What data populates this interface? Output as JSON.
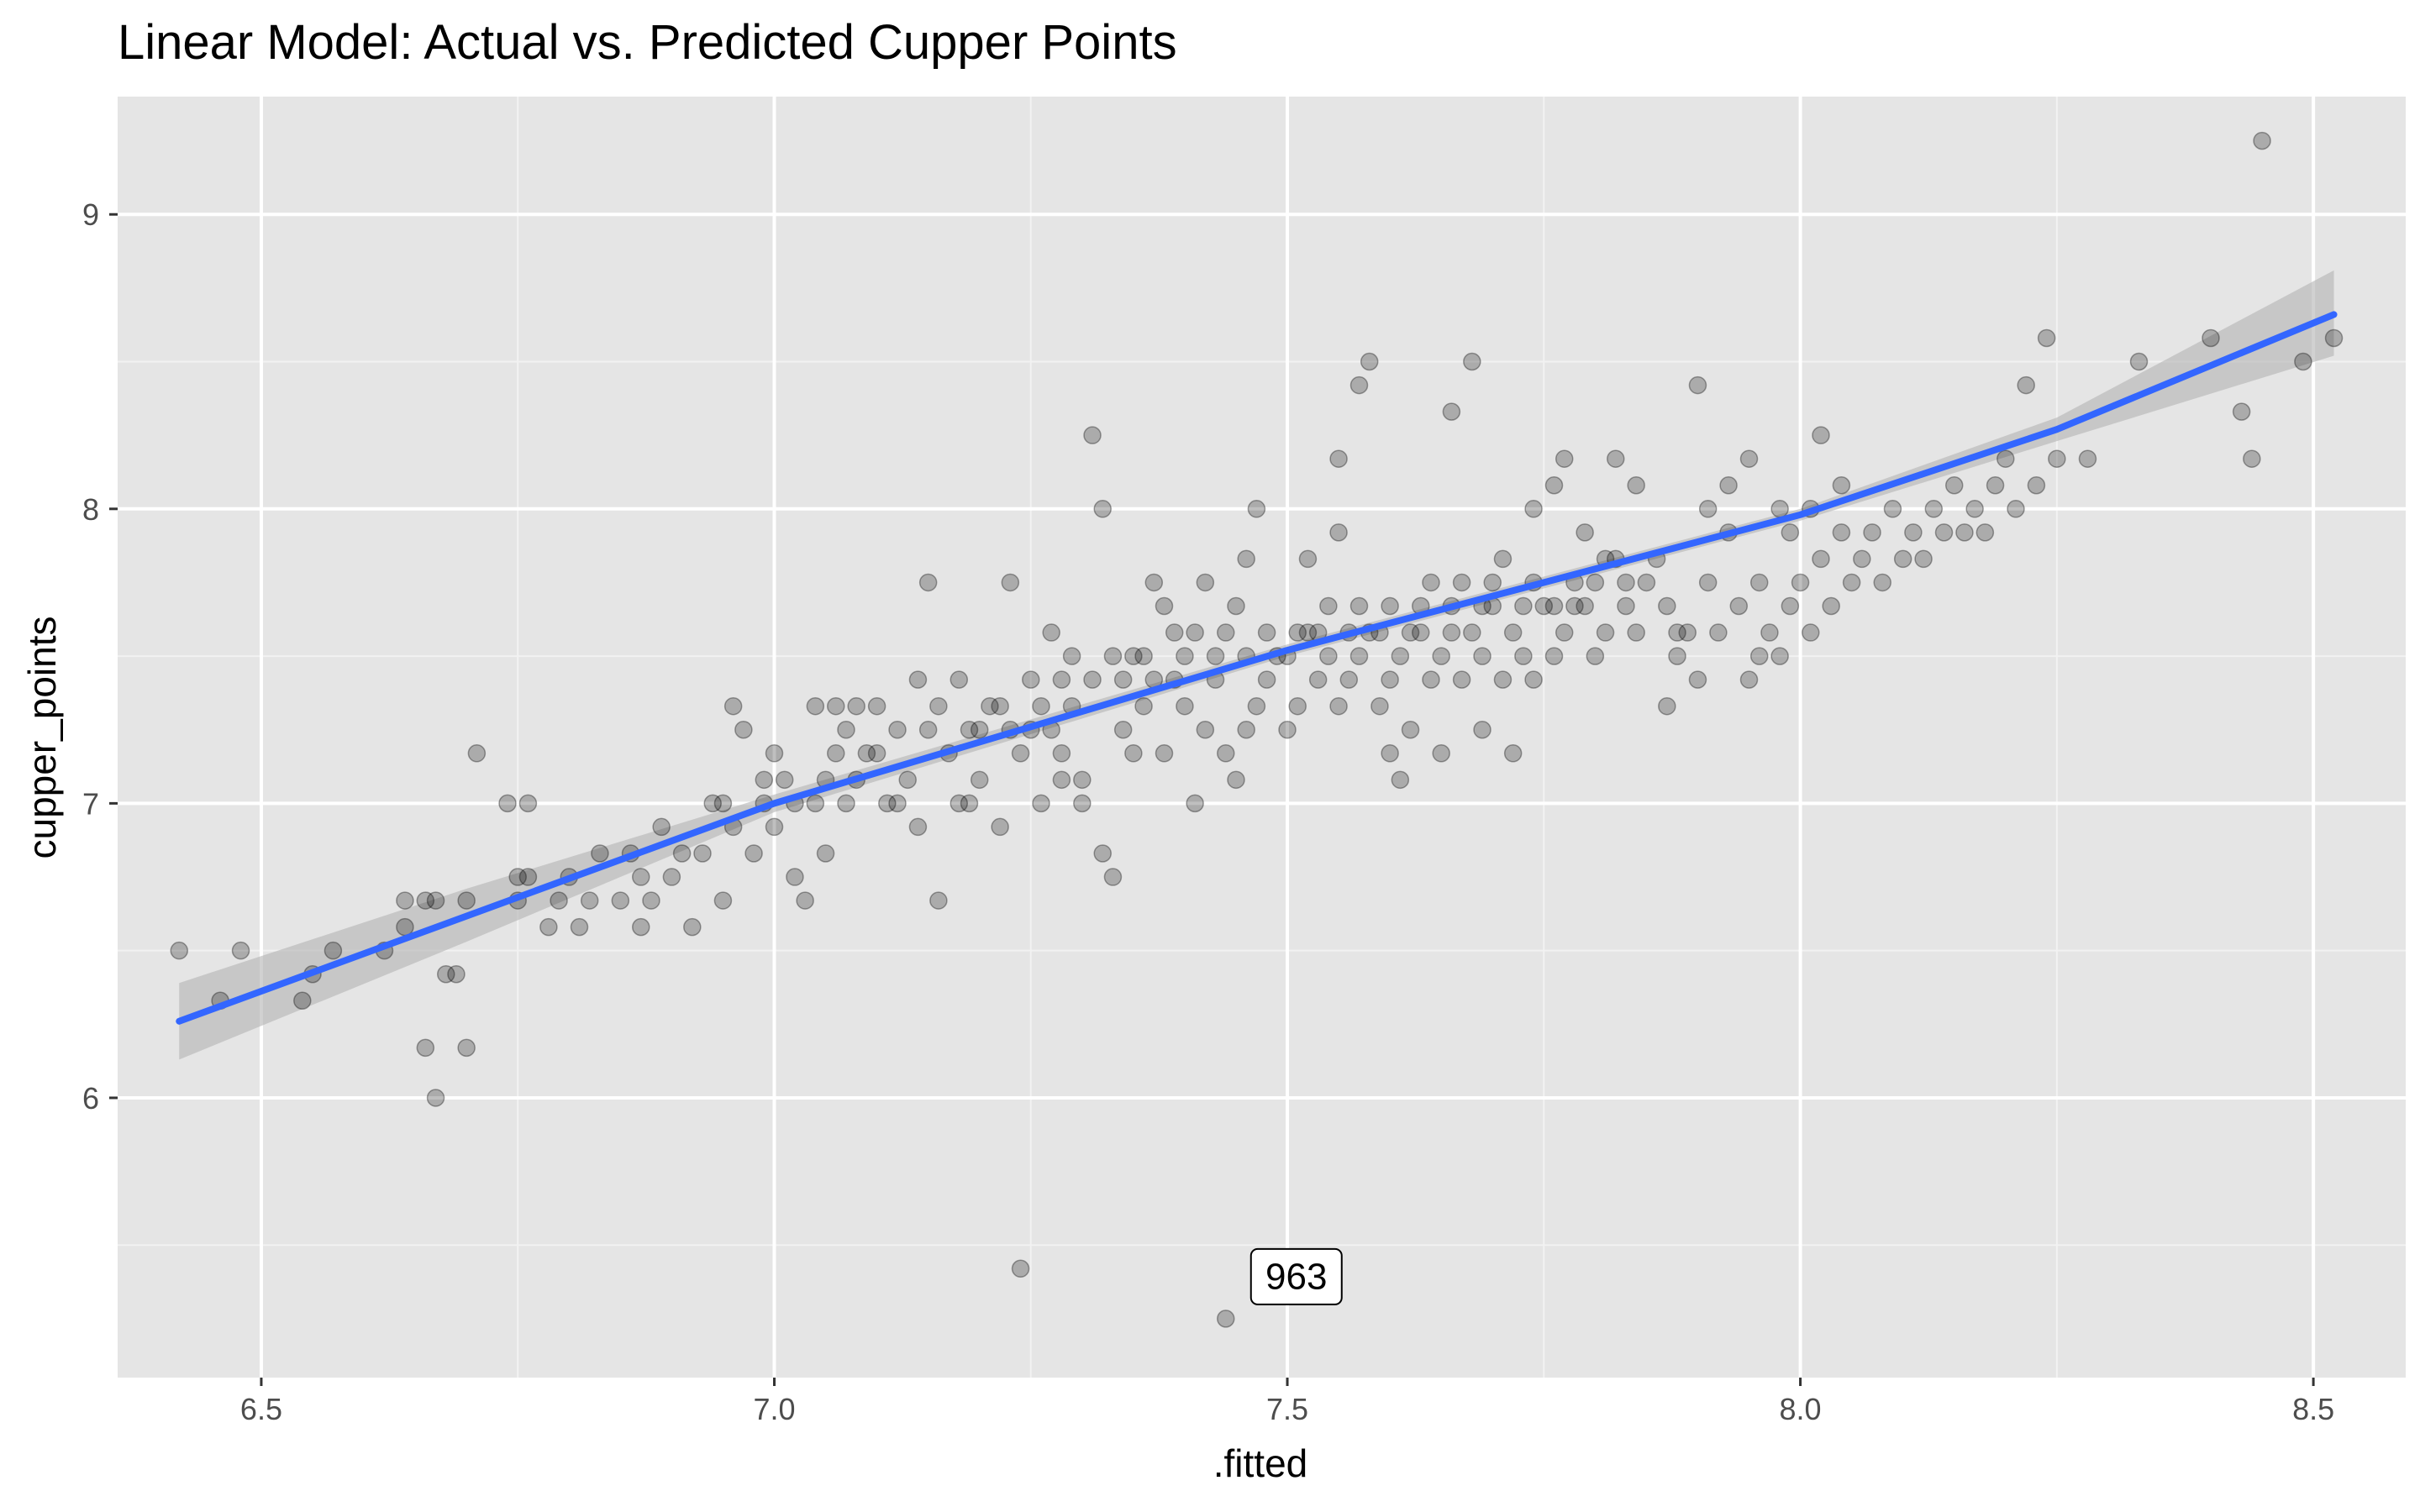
{
  "chart_data": {
    "type": "scatter",
    "title": "Linear Model: Actual vs. Predicted Cupper Points",
    "xlabel": ".fitted",
    "ylabel": "cupper_points",
    "xlim": [
      6.36,
      8.59
    ],
    "ylim": [
      5.05,
      9.4
    ],
    "x_ticks": [
      6.5,
      7.0,
      7.5,
      8.0,
      8.5
    ],
    "x_tick_labels": [
      "6.5",
      "7.0",
      "7.5",
      "8.0",
      "8.5"
    ],
    "y_ticks": [
      6,
      7,
      8,
      9
    ],
    "y_tick_labels": [
      "6",
      "7",
      "8",
      "9"
    ],
    "grid": true,
    "background": "#e5e5e5",
    "point_color": "#000000",
    "point_opacity": 0.25,
    "fit_line_color": "#3366ff",
    "ribbon_color": "#b3b3b3",
    "annotation": {
      "label": "963",
      "x": 7.44,
      "y": 5.25
    },
    "series": [
      {
        "type": "scatter",
        "points": [
          [
            6.42,
            6.5
          ],
          [
            6.46,
            6.33
          ],
          [
            6.48,
            6.5
          ],
          [
            6.54,
            6.33
          ],
          [
            6.55,
            6.42
          ],
          [
            6.57,
            6.5
          ],
          [
            6.62,
            6.5
          ],
          [
            6.64,
            6.58
          ],
          [
            6.64,
            6.67
          ],
          [
            6.66,
            6.67
          ],
          [
            6.66,
            6.17
          ],
          [
            6.67,
            6.0
          ],
          [
            6.67,
            6.67
          ],
          [
            6.68,
            6.42
          ],
          [
            6.69,
            6.42
          ],
          [
            6.7,
            6.17
          ],
          [
            6.7,
            6.67
          ],
          [
            6.71,
            7.17
          ],
          [
            6.74,
            7.0
          ],
          [
            6.75,
            6.67
          ],
          [
            6.75,
            6.75
          ],
          [
            6.76,
            7.0
          ],
          [
            6.76,
            6.75
          ],
          [
            6.78,
            6.58
          ],
          [
            6.79,
            6.67
          ],
          [
            6.8,
            6.75
          ],
          [
            6.81,
            6.58
          ],
          [
            6.82,
            6.67
          ],
          [
            6.83,
            6.83
          ],
          [
            6.85,
            6.67
          ],
          [
            6.86,
            6.83
          ],
          [
            6.87,
            6.58
          ],
          [
            6.87,
            6.75
          ],
          [
            6.88,
            6.67
          ],
          [
            6.89,
            6.92
          ],
          [
            6.9,
            6.75
          ],
          [
            6.91,
            6.83
          ],
          [
            6.92,
            6.58
          ],
          [
            6.93,
            6.83
          ],
          [
            6.94,
            7.0
          ],
          [
            6.95,
            6.67
          ],
          [
            6.96,
            7.33
          ],
          [
            6.96,
            6.92
          ],
          [
            6.97,
            7.25
          ],
          [
            6.98,
            6.83
          ],
          [
            6.99,
            7.0
          ],
          [
            7.0,
            6.92
          ],
          [
            7.01,
            7.08
          ],
          [
            7.02,
            6.75
          ],
          [
            7.03,
            6.67
          ],
          [
            7.04,
            7.0
          ],
          [
            7.05,
            6.83
          ],
          [
            7.06,
            7.17
          ],
          [
            7.06,
            7.33
          ],
          [
            7.07,
            7.0
          ],
          [
            7.08,
            7.08
          ],
          [
            7.09,
            7.17
          ],
          [
            7.1,
            7.33
          ],
          [
            7.12,
            7.0
          ],
          [
            7.13,
            7.08
          ],
          [
            7.14,
            6.92
          ],
          [
            7.15,
            7.25
          ],
          [
            7.16,
            6.67
          ],
          [
            7.17,
            7.17
          ],
          [
            7.18,
            7.0
          ],
          [
            7.19,
            7.25
          ],
          [
            7.2,
            7.08
          ],
          [
            7.21,
            7.33
          ],
          [
            7.22,
            6.92
          ],
          [
            7.23,
            7.25
          ],
          [
            7.24,
            7.17
          ],
          [
            7.25,
            7.42
          ],
          [
            7.26,
            7.0
          ],
          [
            7.27,
            7.25
          ],
          [
            7.28,
            7.17
          ],
          [
            7.29,
            7.33
          ],
          [
            7.3,
            7.08
          ],
          [
            7.31,
            7.42
          ],
          [
            7.32,
            6.83
          ],
          [
            7.33,
            6.75
          ],
          [
            7.34,
            7.25
          ],
          [
            7.35,
            7.17
          ],
          [
            7.36,
            7.33
          ],
          [
            7.37,
            7.75
          ],
          [
            7.38,
            7.17
          ],
          [
            7.39,
            7.42
          ],
          [
            7.4,
            7.33
          ],
          [
            7.41,
            7.0
          ],
          [
            7.42,
            7.25
          ],
          [
            7.43,
            7.42
          ],
          [
            7.44,
            7.17
          ],
          [
            7.45,
            7.08
          ],
          [
            7.46,
            7.25
          ],
          [
            7.47,
            7.33
          ],
          [
            7.48,
            7.42
          ],
          [
            7.49,
            7.5
          ],
          [
            7.5,
            7.25
          ],
          [
            7.51,
            7.33
          ],
          [
            7.52,
            7.58
          ],
          [
            7.53,
            7.42
          ],
          [
            7.54,
            7.5
          ],
          [
            7.55,
            7.33
          ],
          [
            7.56,
            7.42
          ],
          [
            7.57,
            7.5
          ],
          [
            7.58,
            7.58
          ],
          [
            7.59,
            7.33
          ],
          [
            7.6,
            7.42
          ],
          [
            7.61,
            7.5
          ],
          [
            7.62,
            7.25
          ],
          [
            7.63,
            7.58
          ],
          [
            7.64,
            7.42
          ],
          [
            7.65,
            7.5
          ],
          [
            7.66,
            7.67
          ],
          [
            7.67,
            7.42
          ],
          [
            7.68,
            7.58
          ],
          [
            7.69,
            7.5
          ],
          [
            7.7,
            7.67
          ],
          [
            7.71,
            7.42
          ],
          [
            7.72,
            7.58
          ],
          [
            7.73,
            7.5
          ],
          [
            7.74,
            7.42
          ],
          [
            7.75,
            7.67
          ],
          [
            7.76,
            7.5
          ],
          [
            7.77,
            7.58
          ],
          [
            7.78,
            7.75
          ],
          [
            7.79,
            7.67
          ],
          [
            7.8,
            7.5
          ],
          [
            7.81,
            7.58
          ],
          [
            7.82,
            7.83
          ],
          [
            7.83,
            7.67
          ],
          [
            7.84,
            7.58
          ],
          [
            7.85,
            7.75
          ],
          [
            7.86,
            7.83
          ],
          [
            7.87,
            7.67
          ],
          [
            7.88,
            7.5
          ],
          [
            7.89,
            7.58
          ],
          [
            7.9,
            7.42
          ],
          [
            7.91,
            7.75
          ],
          [
            7.92,
            7.58
          ],
          [
            7.93,
            7.92
          ],
          [
            7.94,
            7.67
          ],
          [
            7.95,
            7.42
          ],
          [
            7.96,
            7.75
          ],
          [
            7.97,
            7.58
          ],
          [
            7.98,
            7.5
          ],
          [
            7.99,
            7.67
          ],
          [
            8.0,
            7.75
          ],
          [
            8.01,
            7.58
          ],
          [
            8.02,
            7.83
          ],
          [
            8.03,
            7.67
          ],
          [
            8.04,
            7.92
          ],
          [
            8.05,
            7.75
          ],
          [
            8.06,
            7.83
          ],
          [
            8.07,
            7.92
          ],
          [
            8.08,
            7.75
          ],
          [
            8.09,
            8.0
          ],
          [
            8.1,
            7.83
          ],
          [
            8.11,
            7.92
          ],
          [
            8.12,
            7.83
          ],
          [
            8.13,
            8.0
          ],
          [
            8.14,
            7.92
          ],
          [
            8.15,
            8.08
          ],
          [
            8.16,
            7.92
          ],
          [
            8.17,
            8.0
          ],
          [
            8.18,
            7.92
          ],
          [
            8.19,
            8.08
          ],
          [
            8.2,
            8.17
          ],
          [
            8.21,
            8.0
          ],
          [
            8.22,
            8.42
          ],
          [
            8.23,
            8.08
          ],
          [
            8.24,
            8.58
          ],
          [
            8.25,
            8.17
          ],
          [
            8.28,
            8.17
          ],
          [
            8.33,
            8.5
          ],
          [
            8.4,
            8.58
          ],
          [
            8.43,
            8.33
          ],
          [
            8.44,
            8.17
          ],
          [
            8.45,
            9.25
          ],
          [
            8.49,
            8.5
          ],
          [
            8.52,
            8.58
          ],
          [
            7.04,
            7.33
          ],
          [
            7.08,
            7.33
          ],
          [
            7.11,
            7.0
          ],
          [
            7.14,
            7.42
          ],
          [
            7.15,
            7.75
          ],
          [
            7.19,
            7.0
          ],
          [
            7.23,
            7.75
          ],
          [
            7.27,
            7.58
          ],
          [
            7.31,
            8.25
          ],
          [
            7.32,
            8.0
          ],
          [
            7.28,
            7.08
          ],
          [
            7.3,
            7.0
          ],
          [
            7.35,
            7.5
          ],
          [
            7.38,
            7.67
          ],
          [
            7.39,
            7.58
          ],
          [
            7.42,
            7.75
          ],
          [
            7.45,
            7.67
          ],
          [
            7.46,
            7.83
          ],
          [
            7.47,
            8.0
          ],
          [
            7.52,
            7.83
          ],
          [
            7.55,
            7.92
          ],
          [
            7.57,
            8.42
          ],
          [
            7.58,
            8.5
          ],
          [
            7.55,
            8.17
          ],
          [
            7.6,
            7.17
          ],
          [
            7.61,
            7.08
          ],
          [
            7.65,
            7.17
          ],
          [
            7.66,
            8.33
          ],
          [
            7.68,
            8.5
          ],
          [
            7.69,
            7.25
          ],
          [
            7.72,
            7.17
          ],
          [
            7.74,
            8.0
          ],
          [
            7.76,
            8.08
          ],
          [
            7.77,
            8.17
          ],
          [
            7.79,
            7.92
          ],
          [
            7.82,
            8.17
          ],
          [
            7.84,
            8.08
          ],
          [
            7.87,
            7.33
          ],
          [
            7.88,
            7.58
          ],
          [
            7.9,
            8.42
          ],
          [
            7.91,
            8.0
          ],
          [
            7.93,
            8.08
          ],
          [
            7.95,
            8.17
          ],
          [
            7.96,
            7.5
          ],
          [
            7.98,
            8.0
          ],
          [
            7.99,
            7.92
          ],
          [
            8.01,
            8.0
          ],
          [
            8.02,
            8.25
          ],
          [
            8.04,
            8.08
          ],
          [
            7.24,
            5.42
          ],
          [
            7.44,
            5.25
          ],
          [
            6.95,
            7.0
          ],
          [
            6.99,
            7.08
          ],
          [
            7.0,
            7.17
          ],
          [
            7.02,
            7.0
          ],
          [
            7.05,
            7.08
          ],
          [
            7.07,
            7.25
          ],
          [
            7.1,
            7.17
          ],
          [
            7.12,
            7.25
          ],
          [
            7.16,
            7.33
          ],
          [
            7.18,
            7.42
          ],
          [
            7.2,
            7.25
          ],
          [
            7.22,
            7.33
          ],
          [
            7.25,
            7.25
          ],
          [
            7.26,
            7.33
          ],
          [
            7.28,
            7.42
          ],
          [
            7.29,
            7.5
          ],
          [
            7.33,
            7.5
          ],
          [
            7.34,
            7.42
          ],
          [
            7.36,
            7.5
          ],
          [
            7.37,
            7.42
          ],
          [
            7.4,
            7.5
          ],
          [
            7.41,
            7.58
          ],
          [
            7.43,
            7.5
          ],
          [
            7.44,
            7.58
          ],
          [
            7.46,
            7.5
          ],
          [
            7.48,
            7.58
          ],
          [
            7.5,
            7.5
          ],
          [
            7.51,
            7.58
          ],
          [
            7.53,
            7.58
          ],
          [
            7.54,
            7.67
          ],
          [
            7.56,
            7.58
          ],
          [
            7.57,
            7.67
          ],
          [
            7.59,
            7.58
          ],
          [
            7.6,
            7.67
          ],
          [
            7.62,
            7.58
          ],
          [
            7.63,
            7.67
          ],
          [
            7.64,
            7.75
          ],
          [
            7.66,
            7.58
          ],
          [
            7.67,
            7.75
          ],
          [
            7.69,
            7.67
          ],
          [
            7.7,
            7.75
          ],
          [
            7.71,
            7.83
          ],
          [
            7.73,
            7.67
          ],
          [
            7.74,
            7.75
          ],
          [
            7.76,
            7.67
          ],
          [
            7.78,
            7.67
          ],
          [
            7.8,
            7.75
          ],
          [
            7.81,
            7.83
          ],
          [
            7.83,
            7.75
          ]
        ]
      },
      {
        "type": "line",
        "name": "",
        "x": [
          6.42,
          7.0,
          7.5,
          8.0,
          8.25,
          8.52
        ],
        "y": [
          6.26,
          7.0,
          7.52,
          7.98,
          8.27,
          8.66
        ]
      },
      {
        "type": "ribbon",
        "x": [
          6.42,
          6.7,
          7.0,
          7.5,
          8.0,
          8.25,
          8.52
        ],
        "ymin": [
          6.13,
          6.53,
          6.97,
          7.5,
          7.96,
          8.23,
          8.52
        ],
        "ymax": [
          6.39,
          6.71,
          7.03,
          7.54,
          8.0,
          8.31,
          8.81
        ]
      }
    ]
  }
}
